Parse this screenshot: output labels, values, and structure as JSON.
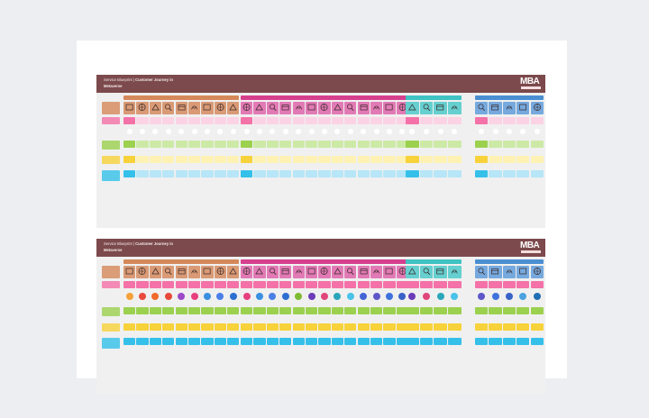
{
  "boards": [
    {
      "id": "top",
      "title_prefix": "Service Blueprint | ",
      "title_bold": "Customer Journey in",
      "title_line2": "Metaverse",
      "logo_text": "MBA",
      "phase_labels": [
        "",
        "",
        "",
        ""
      ],
      "row_labels": [
        "",
        "",
        "",
        "",
        "",
        ""
      ]
    },
    {
      "id": "bottom",
      "title_prefix": "Service Blueprint | ",
      "title_bold": "Customer Journey in",
      "title_line2": "Metaverse",
      "logo_text": "MBA",
      "phase_labels": [
        "",
        "",
        "",
        ""
      ],
      "row_labels": [
        "",
        "",
        "",
        "",
        "",
        ""
      ]
    }
  ],
  "phase_colors": [
    "#d5885a",
    "#d63f8e",
    "#3fc3c3",
    "#4a8fd1"
  ],
  "icon_colors": [
    "#d99a75",
    "#e27ab5",
    "#66cfcf",
    "#76a9de"
  ],
  "row_colors": {
    "pink": "#f472a8",
    "pink_light": "#fbd3e4",
    "green": "#9bd14f",
    "green_light": "#cde9a6",
    "yellow": "#f7d23a",
    "yellow_light": "#fdf2b3",
    "cyan": "#35c0ea",
    "cyan_light": "#b6e6f7"
  }
}
